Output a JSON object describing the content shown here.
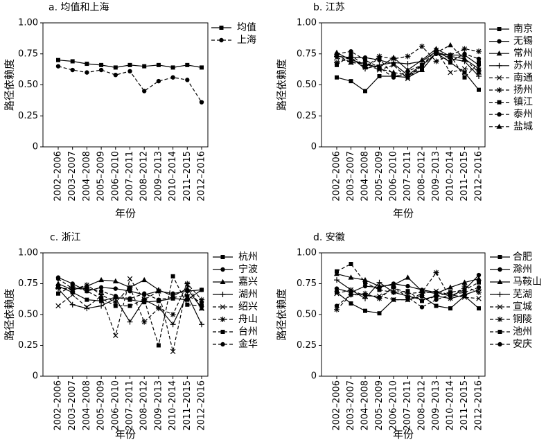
{
  "chart_data": [
    {
      "type": "line",
      "title": "a. 均值和上海",
      "xlabel": "年份",
      "ylabel": "路径依赖度",
      "ylim": [
        0,
        1
      ],
      "yticks": [
        0,
        0.25,
        0.5,
        0.75,
        1
      ],
      "ytick_labels": [
        "0",
        "0.25",
        "0.50",
        "0.75",
        "1.00"
      ],
      "grid": false,
      "legend": "right",
      "color": "#000000",
      "categories": [
        "2002–2006",
        "2003–2007",
        "2004–2008",
        "2005–2009",
        "2006–2010",
        "2007–2011",
        "2008–2012",
        "2009–2013",
        "2010–2014",
        "2011–2015",
        "2012–2016"
      ],
      "series": [
        {
          "name": "均值",
          "style": "solid",
          "marker": "square",
          "values": [
            0.7,
            0.69,
            0.67,
            0.66,
            0.64,
            0.66,
            0.65,
            0.66,
            0.64,
            0.66,
            0.64
          ]
        },
        {
          "name": "上海",
          "style": "dashed",
          "marker": "circle",
          "values": [
            0.65,
            0.62,
            0.6,
            0.62,
            0.58,
            0.61,
            0.45,
            0.53,
            0.56,
            0.54,
            0.36
          ]
        }
      ]
    },
    {
      "type": "line",
      "title": "b. 江苏",
      "xlabel": "年份",
      "ylabel": "路径依赖度",
      "ylim": [
        0,
        1
      ],
      "yticks": [
        0,
        0.25,
        0.5,
        0.75,
        1
      ],
      "ytick_labels": [
        "0",
        "0.25",
        "0.50",
        "0.75",
        "1.00"
      ],
      "grid": false,
      "legend": "right",
      "color": "#000000",
      "categories": [
        "2002–2006",
        "2003–2007",
        "2004–2008",
        "2005–2009",
        "2006–2010",
        "2007–2011",
        "2008–2012",
        "2009–2013",
        "2010–2014",
        "2011–2015",
        "2012–2016"
      ],
      "series": [
        {
          "name": "南京",
          "style": "solid",
          "marker": "square",
          "values": [
            0.56,
            0.53,
            0.45,
            0.57,
            0.57,
            0.56,
            0.62,
            0.76,
            0.68,
            0.6,
            0.46
          ]
        },
        {
          "name": "无锡",
          "style": "solid",
          "marker": "circle",
          "values": [
            0.73,
            0.72,
            0.72,
            0.7,
            0.67,
            0.58,
            0.66,
            0.75,
            0.74,
            0.74,
            0.66
          ]
        },
        {
          "name": "常州",
          "style": "solid",
          "marker": "triangle",
          "values": [
            0.76,
            0.7,
            0.67,
            0.64,
            0.72,
            0.62,
            0.7,
            0.79,
            0.73,
            0.71,
            0.63
          ]
        },
        {
          "name": "苏州",
          "style": "solid",
          "marker": "plus",
          "values": [
            0.73,
            0.72,
            0.63,
            0.66,
            0.68,
            0.67,
            0.69,
            0.77,
            0.71,
            0.69,
            0.57
          ]
        },
        {
          "name": "南通",
          "style": "dashed",
          "marker": "x",
          "values": [
            0.72,
            0.68,
            0.67,
            0.62,
            0.66,
            0.55,
            0.66,
            0.78,
            0.6,
            0.63,
            0.62
          ]
        },
        {
          "name": "扬州",
          "style": "dashed",
          "marker": "asterisk",
          "values": [
            0.68,
            0.72,
            0.64,
            0.73,
            0.71,
            0.73,
            0.81,
            0.69,
            0.74,
            0.79,
            0.77
          ]
        },
        {
          "name": "镇江",
          "style": "dashed",
          "marker": "square",
          "values": [
            0.66,
            0.74,
            0.65,
            0.71,
            0.58,
            0.57,
            0.65,
            0.76,
            0.74,
            0.56,
            0.68
          ]
        },
        {
          "name": "泰州",
          "style": "dashed",
          "marker": "circle",
          "values": [
            0.75,
            0.77,
            0.7,
            0.64,
            0.56,
            0.61,
            0.66,
            0.75,
            0.69,
            0.75,
            0.71
          ]
        },
        {
          "name": "盐城",
          "style": "dashed",
          "marker": "triangle",
          "values": [
            0.74,
            0.68,
            0.68,
            0.63,
            0.6,
            0.58,
            0.62,
            0.76,
            0.82,
            0.71,
            0.6
          ]
        }
      ]
    },
    {
      "type": "line",
      "title": "c. 浙江",
      "xlabel": "年份",
      "ylabel": "路径依赖度",
      "ylim": [
        0,
        1
      ],
      "yticks": [
        0,
        0.25,
        0.5,
        0.75,
        1
      ],
      "ytick_labels": [
        "0",
        "0.25",
        "0.50",
        "0.75",
        "1.00"
      ],
      "grid": false,
      "legend": "right",
      "color": "#000000",
      "categories": [
        "2002–2006",
        "2003–2007",
        "2004–2008",
        "2005–2009",
        "2006–2010",
        "2007–2011",
        "2008–2012",
        "2009–2013",
        "2010–2014",
        "2011–2015",
        "2012–2016"
      ],
      "series": [
        {
          "name": "杭州",
          "style": "solid",
          "marker": "square",
          "values": [
            0.73,
            0.68,
            0.62,
            0.61,
            0.64,
            0.62,
            0.6,
            0.61,
            0.63,
            0.62,
            0.7
          ]
        },
        {
          "name": "宁波",
          "style": "solid",
          "marker": "circle",
          "values": [
            0.8,
            0.75,
            0.69,
            0.72,
            0.71,
            0.69,
            0.66,
            0.69,
            0.67,
            0.69,
            0.7
          ]
        },
        {
          "name": "嘉兴",
          "style": "solid",
          "marker": "triangle",
          "values": [
            0.75,
            0.7,
            0.73,
            0.78,
            0.77,
            0.72,
            0.78,
            0.7,
            0.65,
            0.71,
            0.55
          ]
        },
        {
          "name": "湖州",
          "style": "solid",
          "marker": "plus",
          "values": [
            0.71,
            0.58,
            0.55,
            0.57,
            0.63,
            0.44,
            0.62,
            0.56,
            0.42,
            0.66,
            0.42
          ]
        },
        {
          "name": "绍兴",
          "style": "dashed",
          "marker": "x",
          "values": [
            0.57,
            0.66,
            0.56,
            0.65,
            0.33,
            0.79,
            0.62,
            0.69,
            0.2,
            0.74,
            0.55
          ]
        },
        {
          "name": "舟山",
          "style": "dashed",
          "marker": "asterisk",
          "values": [
            0.72,
            0.7,
            0.74,
            0.66,
            0.6,
            0.72,
            0.44,
            0.55,
            0.5,
            0.75,
            0.62
          ]
        },
        {
          "name": "台州",
          "style": "dashed",
          "marker": "square",
          "values": [
            0.67,
            0.73,
            0.69,
            0.63,
            0.57,
            0.57,
            0.62,
            0.25,
            0.81,
            0.58,
            0.57
          ]
        },
        {
          "name": "金华",
          "style": "dashed",
          "marker": "circle",
          "values": [
            0.79,
            0.71,
            0.71,
            0.69,
            0.65,
            0.63,
            0.67,
            0.62,
            0.64,
            0.65,
            0.6
          ]
        }
      ]
    },
    {
      "type": "line",
      "title": "d. 安徽",
      "xlabel": "年份",
      "ylabel": "路径依赖度",
      "ylim": [
        0,
        1
      ],
      "yticks": [
        0,
        0.25,
        0.5,
        0.75,
        1
      ],
      "ytick_labels": [
        "0",
        "0.25",
        "0.50",
        "0.75",
        "1.00"
      ],
      "grid": false,
      "legend": "right",
      "color": "#000000",
      "categories": [
        "2002–2006",
        "2003–2007",
        "2004–2008",
        "2005–2009",
        "2006–2010",
        "2007–2011",
        "2008–2012",
        "2009–2013",
        "2010–2014",
        "2011–2015",
        "2012–2016"
      ],
      "series": [
        {
          "name": "合肥",
          "style": "solid",
          "marker": "square",
          "values": [
            0.68,
            0.59,
            0.53,
            0.51,
            0.62,
            0.62,
            0.65,
            0.57,
            0.55,
            0.65,
            0.55
          ]
        },
        {
          "name": "滁州",
          "style": "solid",
          "marker": "circle",
          "values": [
            0.71,
            0.68,
            0.73,
            0.72,
            0.75,
            0.73,
            0.7,
            0.68,
            0.65,
            0.7,
            0.82
          ]
        },
        {
          "name": "马鞍山",
          "style": "solid",
          "marker": "triangle",
          "values": [
            0.83,
            0.8,
            0.78,
            0.73,
            0.74,
            0.8,
            0.69,
            0.67,
            0.72,
            0.76,
            0.79
          ]
        },
        {
          "name": "芜湖",
          "style": "solid",
          "marker": "plus",
          "values": [
            0.78,
            0.7,
            0.63,
            0.76,
            0.68,
            0.65,
            0.62,
            0.65,
            0.63,
            0.66,
            0.7
          ]
        },
        {
          "name": "宣城",
          "style": "dashed",
          "marker": "x",
          "values": [
            0.67,
            0.7,
            0.65,
            0.65,
            0.62,
            0.62,
            0.67,
            0.69,
            0.66,
            0.64,
            0.63
          ]
        },
        {
          "name": "铜陵",
          "style": "dashed",
          "marker": "asterisk",
          "values": [
            0.54,
            0.66,
            0.67,
            0.63,
            0.72,
            0.67,
            0.68,
            0.84,
            0.63,
            0.73,
            0.68
          ]
        },
        {
          "name": "池州",
          "style": "dashed",
          "marker": "square",
          "values": [
            0.85,
            0.91,
            0.76,
            0.7,
            0.68,
            0.69,
            0.61,
            0.65,
            0.68,
            0.7,
            0.76
          ]
        },
        {
          "name": "安庆",
          "style": "dashed",
          "marker": "circle",
          "values": [
            0.57,
            0.66,
            0.66,
            0.64,
            0.72,
            0.64,
            0.56,
            0.62,
            0.66,
            0.68,
            0.72
          ]
        }
      ]
    }
  ]
}
